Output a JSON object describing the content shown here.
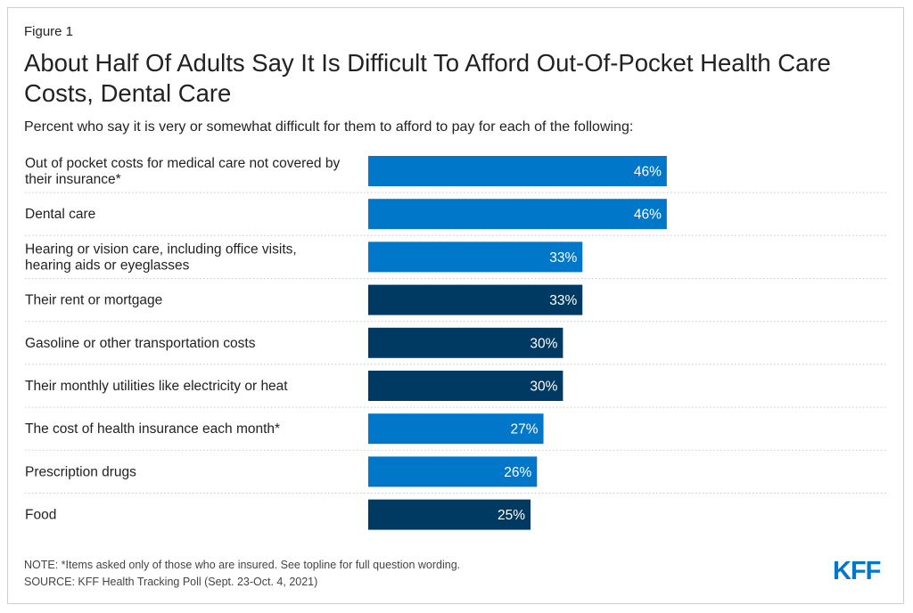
{
  "figure_label": "Figure 1",
  "logo": {
    "text": "KFF",
    "color": "#0077c8"
  },
  "note": "NOTE: *Items asked only of those who are insured. See topline for full question wording.",
  "source": "SOURCE: KFF Health Tracking Poll (Sept. 23-Oct. 4, 2021)",
  "chart_data": {
    "type": "bar",
    "orientation": "horizontal",
    "title": "About Half Of Adults Say It Is Difficult To Afford Out-Of-Pocket Health Care Costs, Dental Care",
    "subtitle": "Percent who say it is very or somewhat difficult for them to afford to pay for each of the following:",
    "categories": [
      [
        "Out of pocket costs for medical care not covered by",
        "their insurance*"
      ],
      [
        "Dental care"
      ],
      [
        "Hearing or vision care, including office visits,",
        "hearing aids or eyeglasses"
      ],
      [
        "Their rent or mortgage"
      ],
      [
        "Gasoline or other transportation costs"
      ],
      [
        "Their monthly utilities like electricity or heat"
      ],
      [
        "The cost of health insurance each month*"
      ],
      [
        "Prescription drugs"
      ],
      [
        "Food"
      ]
    ],
    "values": [
      46,
      46,
      33,
      33,
      30,
      30,
      27,
      26,
      25
    ],
    "value_labels": [
      "46%",
      "46%",
      "33%",
      "33%",
      "30%",
      "30%",
      "27%",
      "26%",
      "25%"
    ],
    "bar_colors": [
      "#0077c8",
      "#0077c8",
      "#0077c8",
      "#003a63",
      "#003a63",
      "#003a63",
      "#0077c8",
      "#0077c8",
      "#003a63"
    ],
    "xlim": [
      0,
      100
    ],
    "grid": false,
    "legend": "none"
  }
}
